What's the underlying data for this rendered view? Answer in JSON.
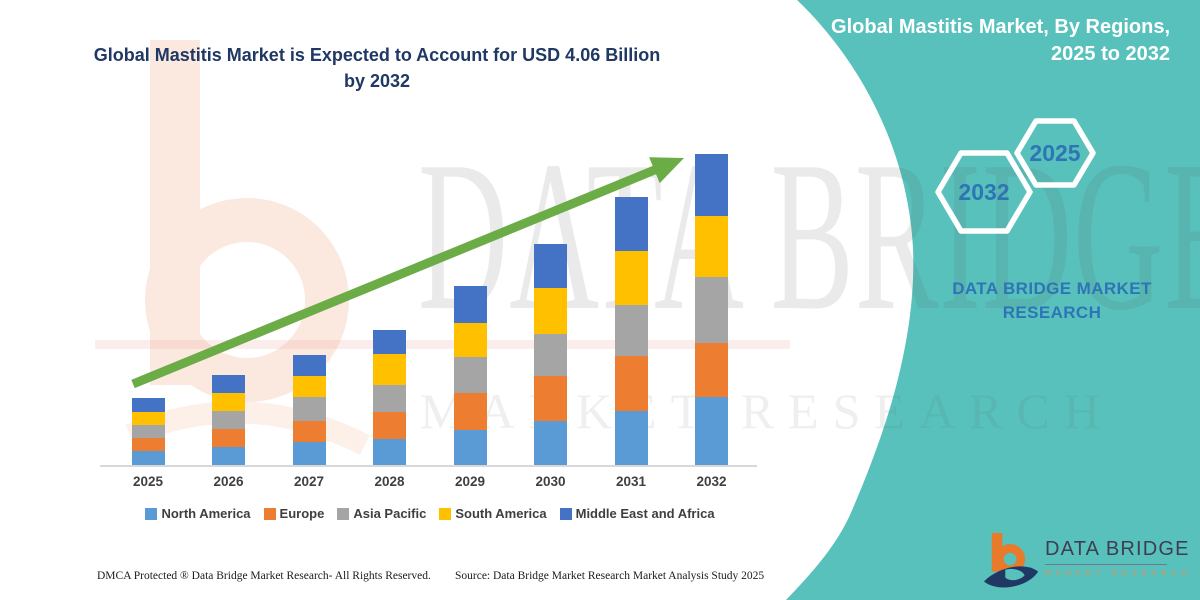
{
  "header": {
    "chart_title": "Global Mastitis Market is Expected to Account for USD 4.06 Billion by 2032"
  },
  "chart_data": {
    "type": "bar",
    "stacked": true,
    "unit": "USD Billion",
    "title": "Global Mastitis Market is Expected to Account for USD 4.06 Billion by 2032",
    "xlabel": "",
    "ylabel": "",
    "grid": false,
    "legend_position": "bottom",
    "categories": [
      "2025",
      "2026",
      "2027",
      "2028",
      "2029",
      "2030",
      "2031",
      "2032"
    ],
    "series": [
      {
        "name": "North America",
        "color": "#5B9BD5",
        "values": [
          0.18,
          0.23,
          0.3,
          0.34,
          0.46,
          0.57,
          0.7,
          0.89
        ]
      },
      {
        "name": "Europe",
        "color": "#ED7D31",
        "values": [
          0.17,
          0.23,
          0.28,
          0.35,
          0.48,
          0.59,
          0.72,
          0.71
        ]
      },
      {
        "name": "Asia Pacific",
        "color": "#A5A5A5",
        "values": [
          0.17,
          0.23,
          0.31,
          0.35,
          0.47,
          0.55,
          0.66,
          0.86
        ]
      },
      {
        "name": "South America",
        "color": "#FFC000",
        "values": [
          0.17,
          0.23,
          0.27,
          0.4,
          0.44,
          0.6,
          0.71,
          0.79
        ]
      },
      {
        "name": "Middle East and Africa",
        "color": "#4472C4",
        "values": [
          0.18,
          0.23,
          0.28,
          0.31,
          0.48,
          0.58,
          0.71,
          0.81
        ]
      }
    ],
    "totals_usd_billion": [
      0.87,
      1.15,
      1.44,
      1.75,
      2.33,
      2.89,
      3.5,
      4.06
    ],
    "highlight_value": "USD 4.06 Billion by 2032",
    "trend_arrow": true,
    "trend_arrow_color": "#6BAC47"
  },
  "footer": {
    "dmca": "DMCA Protected ® Data Bridge Market Research-  All Rights Reserved.",
    "source": "Source: Data Bridge Market Research  Market Analysis Study 2025"
  },
  "sidebar": {
    "title": "Global Mastitis Market, By Regions, 2025 to 2032",
    "accent_teal": "#58C1BC",
    "hex_number_color": "#2E75B6",
    "hexagons": [
      {
        "label": "2032"
      },
      {
        "label": "2025"
      }
    ],
    "brand_caption": "DATA BRIDGE MARKET RESEARCH",
    "logo": {
      "name": "DATA BRIDGE",
      "tagline": "MARKET RESEARCH",
      "orange": "#E87A2B",
      "navy": "#1F3864"
    }
  },
  "watermark": {
    "line1": "DATA BRIDGE",
    "line2": "MARKET RESEARCH"
  }
}
